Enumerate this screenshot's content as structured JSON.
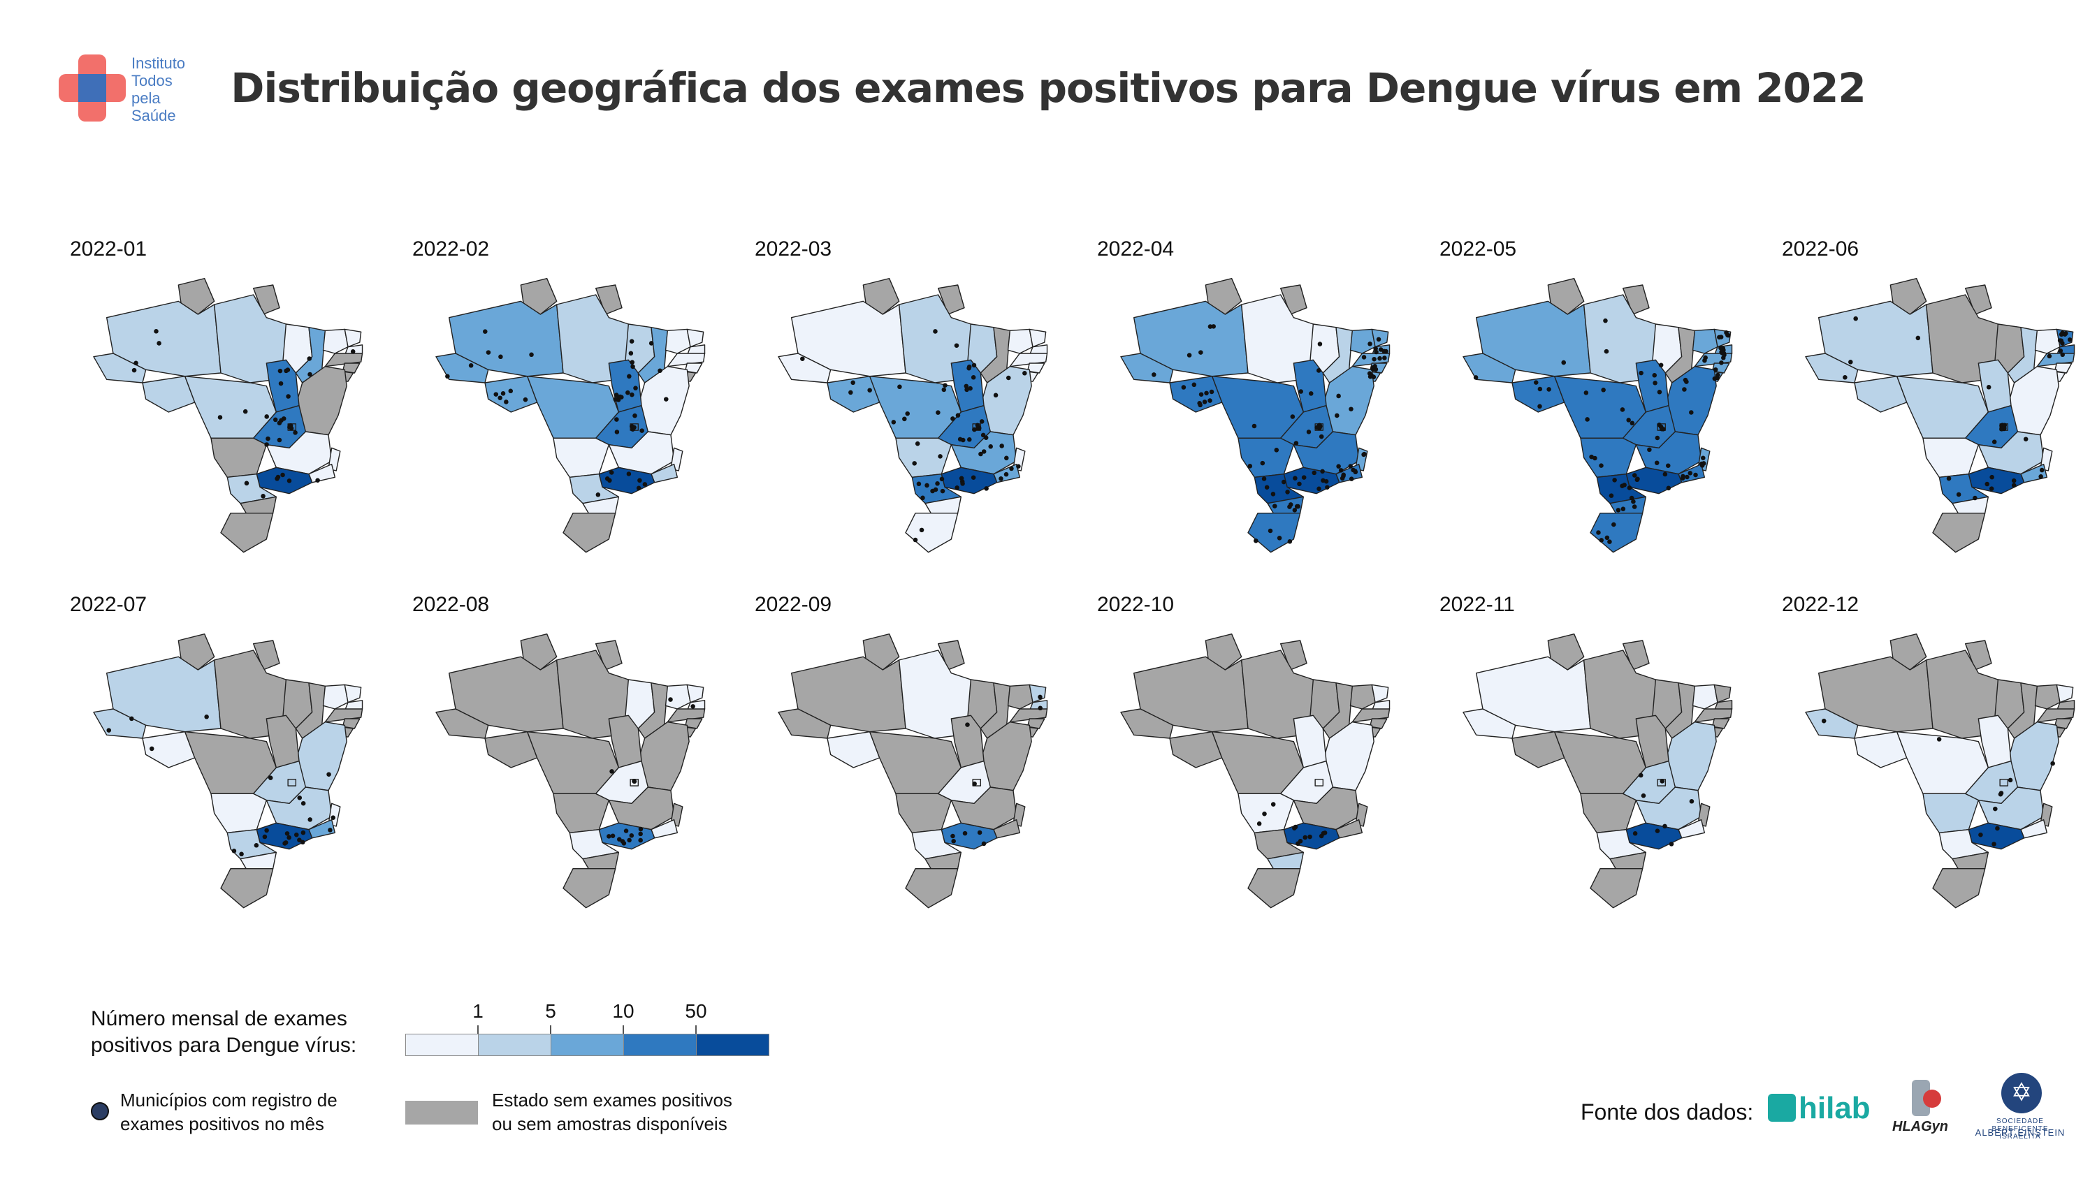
{
  "logo": {
    "lines": [
      "Instituto",
      "Todos",
      "pela",
      "Saúde"
    ]
  },
  "title": "Distribuição geográfica dos exames positivos para Dengue vírus em 2022",
  "colors": {
    "no_data": "#a6a6a6",
    "bins": [
      "#eef3fb",
      "#bad3e8",
      "#6aa7d8",
      "#2f79c0",
      "#084c9b"
    ],
    "dot": "#111111",
    "border": "#222222"
  },
  "map_data": {
    "type": "choropleth",
    "region": "Brazil states",
    "states": [
      "AC",
      "AM",
      "RR",
      "PA",
      "AP",
      "MA",
      "PI",
      "CE",
      "RN",
      "PB",
      "PE",
      "AL",
      "SE",
      "BA",
      "TO",
      "RO",
      "MT",
      "GO",
      "DF",
      "MS",
      "MG",
      "ES",
      "RJ",
      "SP",
      "PR",
      "SC",
      "RS"
    ],
    "bin_legend": "levels: 0 = Estado sem exames positivos ou sem amostras disponíveis; 1 = <1; 2 = 1–5; 3 = 5–10; 4 = 10–50; 5 = >50",
    "months": [
      {
        "label": "2022-01",
        "levels": {
          "AC": 2,
          "AM": 2,
          "RR": 0,
          "PA": 2,
          "AP": 0,
          "MA": 1,
          "PI": 3,
          "CE": 1,
          "RN": 1,
          "PB": 1,
          "PE": 0,
          "AL": 0,
          "SE": 0,
          "BA": 0,
          "TO": 4,
          "RO": 2,
          "MT": 2,
          "GO": 4,
          "DF": 4,
          "MS": 0,
          "MG": 1,
          "ES": 1,
          "RJ": 1,
          "SP": 5,
          "PR": 2,
          "SC": 0,
          "RS": 0
        },
        "dots": 34
      },
      {
        "label": "2022-02",
        "levels": {
          "AC": 3,
          "AM": 3,
          "RR": 0,
          "PA": 2,
          "AP": 0,
          "MA": 2,
          "PI": 3,
          "CE": 1,
          "RN": 1,
          "PB": 1,
          "PE": 1,
          "AL": 1,
          "SE": 0,
          "BA": 1,
          "TO": 4,
          "RO": 3,
          "MT": 3,
          "GO": 4,
          "DF": 4,
          "MS": 1,
          "MG": 1,
          "ES": 1,
          "RJ": 2,
          "SP": 5,
          "PR": 2,
          "SC": 1,
          "RS": 0
        },
        "dots": 44
      },
      {
        "label": "2022-03",
        "levels": {
          "AC": 1,
          "AM": 1,
          "RR": 0,
          "PA": 2,
          "AP": 0,
          "MA": 2,
          "PI": 0,
          "CE": 1,
          "RN": 1,
          "PB": 1,
          "PE": 1,
          "AL": 1,
          "SE": 1,
          "BA": 2,
          "TO": 4,
          "RO": 3,
          "MT": 3,
          "GO": 4,
          "DF": 4,
          "MS": 2,
          "MG": 3,
          "ES": 1,
          "RJ": 3,
          "SP": 5,
          "PR": 4,
          "SC": 1,
          "RS": 1
        },
        "dots": 64
      },
      {
        "label": "2022-04",
        "levels": {
          "AC": 3,
          "AM": 3,
          "RR": 0,
          "PA": 1,
          "AP": 0,
          "MA": 1,
          "PI": 2,
          "CE": 3,
          "RN": 3,
          "PB": 3,
          "PE": 3,
          "AL": 3,
          "SE": 3,
          "BA": 3,
          "TO": 4,
          "RO": 4,
          "MT": 4,
          "GO": 4,
          "DF": 4,
          "MS": 4,
          "MG": 4,
          "ES": 3,
          "RJ": 4,
          "SP": 5,
          "PR": 5,
          "SC": 4,
          "RS": 4
        },
        "dots": 90
      },
      {
        "label": "2022-05",
        "levels": {
          "AC": 3,
          "AM": 3,
          "RR": 0,
          "PA": 2,
          "AP": 0,
          "MA": 1,
          "PI": 0,
          "CE": 3,
          "RN": 3,
          "PB": 3,
          "PE": 3,
          "AL": 3,
          "SE": 3,
          "BA": 4,
          "TO": 4,
          "RO": 4,
          "MT": 4,
          "GO": 4,
          "DF": 4,
          "MS": 4,
          "MG": 4,
          "ES": 3,
          "RJ": 4,
          "SP": 5,
          "PR": 5,
          "SC": 4,
          "RS": 4
        },
        "dots": 84
      },
      {
        "label": "2022-06",
        "levels": {
          "AC": 2,
          "AM": 2,
          "RR": 0,
          "PA": 0,
          "AP": 0,
          "MA": 0,
          "PI": 2,
          "CE": 1,
          "RN": 4,
          "PB": 4,
          "PE": 3,
          "AL": 1,
          "SE": 1,
          "BA": 1,
          "TO": 2,
          "RO": 2,
          "MT": 2,
          "GO": 4,
          "DF": 4,
          "MS": 1,
          "MG": 2,
          "ES": 1,
          "RJ": 3,
          "SP": 5,
          "PR": 4,
          "SC": 1,
          "RS": 0
        },
        "dots": 36
      },
      {
        "label": "2022-07",
        "levels": {
          "AC": 2,
          "AM": 2,
          "RR": 0,
          "PA": 0,
          "AP": 0,
          "MA": 0,
          "PI": 0,
          "CE": 1,
          "RN": 1,
          "PB": 1,
          "PE": 0,
          "AL": 0,
          "SE": 0,
          "BA": 2,
          "TO": 0,
          "RO": 1,
          "MT": 0,
          "GO": 2,
          "DF": 2,
          "MS": 1,
          "MG": 2,
          "ES": 1,
          "RJ": 3,
          "SP": 5,
          "PR": 2,
          "SC": 1,
          "RS": 0
        },
        "dots": 24
      },
      {
        "label": "2022-08",
        "levels": {
          "AC": 0,
          "AM": 0,
          "RR": 0,
          "PA": 0,
          "AP": 0,
          "MA": 1,
          "PI": 0,
          "CE": 1,
          "RN": 1,
          "PB": 1,
          "PE": 0,
          "AL": 0,
          "SE": 0,
          "BA": 0,
          "TO": 0,
          "RO": 0,
          "MT": 0,
          "GO": 1,
          "DF": 1,
          "MS": 0,
          "MG": 0,
          "ES": 0,
          "RJ": 1,
          "SP": 4,
          "PR": 1,
          "SC": 0,
          "RS": 0
        },
        "dots": 16
      },
      {
        "label": "2022-09",
        "levels": {
          "AC": 0,
          "AM": 0,
          "RR": 0,
          "PA": 1,
          "AP": 0,
          "MA": 0,
          "PI": 0,
          "CE": 0,
          "RN": 2,
          "PB": 2,
          "PE": 0,
          "AL": 0,
          "SE": 0,
          "BA": 0,
          "TO": 0,
          "RO": 1,
          "MT": 0,
          "GO": 1,
          "DF": 1,
          "MS": 0,
          "MG": 0,
          "ES": 0,
          "RJ": 0,
          "SP": 4,
          "PR": 1,
          "SC": 0,
          "RS": 0
        },
        "dots": 9
      },
      {
        "label": "2022-10",
        "levels": {
          "AC": 0,
          "AM": 0,
          "RR": 0,
          "PA": 0,
          "AP": 0,
          "MA": 0,
          "PI": 0,
          "CE": 0,
          "RN": 1,
          "PB": 1,
          "PE": 0,
          "AL": 0,
          "SE": 0,
          "BA": 1,
          "TO": 1,
          "RO": 0,
          "MT": 0,
          "GO": 1,
          "DF": 1,
          "MS": 1,
          "MG": 0,
          "ES": 0,
          "RJ": 0,
          "SP": 5,
          "PR": 0,
          "SC": 2,
          "RS": 0
        },
        "dots": 12
      },
      {
        "label": "2022-11",
        "levels": {
          "AC": 1,
          "AM": 1,
          "RR": 0,
          "PA": 0,
          "AP": 0,
          "MA": 0,
          "PI": 0,
          "CE": 1,
          "RN": 0,
          "PB": 0,
          "PE": 0,
          "AL": 0,
          "SE": 0,
          "BA": 2,
          "TO": 0,
          "RO": 0,
          "MT": 0,
          "GO": 2,
          "DF": 2,
          "MS": 0,
          "MG": 2,
          "ES": 0,
          "RJ": 1,
          "SP": 5,
          "PR": 1,
          "SC": 0,
          "RS": 0
        },
        "dots": 8
      },
      {
        "label": "2022-12",
        "levels": {
          "AC": 2,
          "AM": 0,
          "RR": 0,
          "PA": 0,
          "AP": 0,
          "MA": 0,
          "PI": 0,
          "CE": 0,
          "RN": 1,
          "PB": 0,
          "PE": 0,
          "AL": 0,
          "SE": 0,
          "BA": 2,
          "TO": 1,
          "RO": 1,
          "MT": 1,
          "GO": 2,
          "DF": 2,
          "MS": 2,
          "MG": 2,
          "ES": 0,
          "RJ": 1,
          "SP": 5,
          "PR": 1,
          "SC": 0,
          "RS": 0
        },
        "dots": 10
      }
    ]
  },
  "legend": {
    "title_lines": [
      "Número mensal de exames",
      "positivos para Dengue vírus:"
    ],
    "ticks": [
      "1",
      "5",
      "10",
      "50"
    ],
    "dot_lines": [
      "Municípios com registro de",
      "exames positivos no mês"
    ],
    "gray_lines": [
      "Estado sem exames positivos",
      "ou sem amostras disponíveis"
    ]
  },
  "source": {
    "label": "Fonte dos dados:",
    "logos": [
      "hilab",
      "HLAGyn",
      "ALBERT EINSTEIN"
    ],
    "einstein_small": "SOCIEDADE BENEFICENTE ISRAELITA"
  }
}
